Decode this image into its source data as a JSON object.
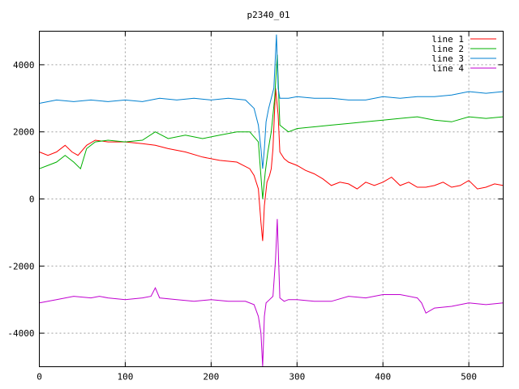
{
  "chart_data": {
    "type": "line",
    "title": "p2340_01",
    "xlabel": "",
    "ylabel": "",
    "xlim": [
      0,
      540
    ],
    "ylim": [
      -5000,
      5000
    ],
    "xticks": [
      0,
      100,
      200,
      300,
      400,
      500
    ],
    "yticks": [
      -4000,
      -2000,
      0,
      2000,
      4000
    ],
    "grid": true,
    "legend_position": "top-right",
    "series": [
      {
        "name": "line 1",
        "color": "#ff0000",
        "x": [
          0,
          10,
          20,
          30,
          38,
          45,
          55,
          65,
          80,
          100,
          120,
          135,
          150,
          170,
          190,
          210,
          230,
          245,
          250,
          255,
          258,
          260,
          262,
          265,
          268,
          270,
          272,
          275,
          278,
          280,
          285,
          290,
          300,
          310,
          320,
          330,
          340,
          350,
          360,
          370,
          380,
          390,
          400,
          410,
          420,
          430,
          440,
          450,
          460,
          470,
          480,
          490,
          500,
          510,
          520,
          530,
          540
        ],
        "y": [
          1400,
          1300,
          1400,
          1600,
          1400,
          1300,
          1600,
          1750,
          1700,
          1700,
          1650,
          1600,
          1500,
          1400,
          1250,
          1150,
          1100,
          900,
          700,
          300,
          -700,
          -1250,
          -200,
          500,
          700,
          900,
          1500,
          3300,
          2500,
          1400,
          1200,
          1100,
          1000,
          850,
          750,
          600,
          400,
          500,
          450,
          300,
          500,
          400,
          500,
          650,
          400,
          500,
          350,
          350,
          400,
          500,
          350,
          400,
          550,
          300,
          350,
          450,
          400
        ]
      },
      {
        "name": "line 2",
        "color": "#00b000",
        "x": [
          0,
          10,
          20,
          30,
          40,
          48,
          55,
          65,
          80,
          100,
          120,
          135,
          150,
          170,
          190,
          210,
          230,
          245,
          255,
          260,
          263,
          266,
          270,
          274,
          277,
          280,
          285,
          290,
          300,
          320,
          340,
          360,
          380,
          400,
          420,
          440,
          460,
          480,
          500,
          520,
          540
        ],
        "y": [
          900,
          1000,
          1100,
          1300,
          1100,
          900,
          1500,
          1700,
          1750,
          1700,
          1750,
          2000,
          1800,
          1900,
          1800,
          1900,
          2000,
          2000,
          1700,
          0,
          800,
          1400,
          2000,
          3000,
          4300,
          2200,
          2100,
          2000,
          2100,
          2150,
          2200,
          2250,
          2300,
          2350,
          2400,
          2450,
          2350,
          2300,
          2450,
          2400,
          2450
        ]
      },
      {
        "name": "line 3",
        "color": "#0080d0",
        "x": [
          0,
          20,
          40,
          60,
          80,
          100,
          120,
          140,
          160,
          180,
          200,
          220,
          240,
          250,
          255,
          258,
          260,
          262,
          264,
          267,
          270,
          273,
          276,
          278,
          280,
          285,
          290,
          300,
          320,
          340,
          360,
          380,
          400,
          420,
          440,
          460,
          480,
          500,
          520,
          540
        ],
        "y": [
          2850,
          2950,
          2900,
          2950,
          2900,
          2950,
          2900,
          3000,
          2950,
          3000,
          2950,
          3000,
          2950,
          2700,
          2200,
          1500,
          900,
          1500,
          2300,
          2700,
          3000,
          3300,
          4900,
          3300,
          3000,
          3000,
          3000,
          3050,
          3000,
          3000,
          2950,
          2950,
          3050,
          3000,
          3050,
          3050,
          3100,
          3200,
          3150,
          3200
        ]
      },
      {
        "name": "line 4",
        "color": "#c000d0",
        "x": [
          0,
          20,
          40,
          60,
          70,
          80,
          100,
          120,
          130,
          135,
          140,
          160,
          180,
          200,
          220,
          240,
          250,
          255,
          258,
          260,
          262,
          264,
          268,
          272,
          275,
          277,
          280,
          285,
          290,
          300,
          320,
          340,
          360,
          380,
          400,
          420,
          440,
          445,
          450,
          460,
          480,
          500,
          520,
          540
        ],
        "y": [
          -3100,
          -3000,
          -2900,
          -2950,
          -2900,
          -2950,
          -3000,
          -2950,
          -2900,
          -2650,
          -2950,
          -3000,
          -3050,
          -3000,
          -3050,
          -3050,
          -3150,
          -3500,
          -4000,
          -5000,
          -3500,
          -3100,
          -3000,
          -2900,
          -1800,
          -600,
          -2950,
          -3050,
          -3000,
          -3000,
          -3050,
          -3050,
          -2900,
          -2950,
          -2850,
          -2850,
          -2950,
          -3100,
          -3400,
          -3250,
          -3200,
          -3100,
          -3150,
          -3100
        ]
      }
    ]
  }
}
